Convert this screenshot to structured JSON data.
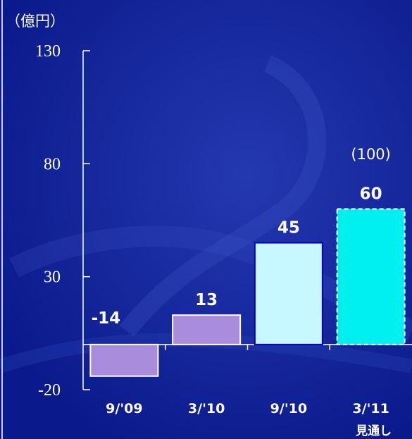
{
  "unit_label": "（億円）",
  "colors": {
    "background": "#0a1a8c",
    "bar_purple": "#a98cdc",
    "bar_lightcyan": "#c8f8ff",
    "bar_cyan": "#00f0f0",
    "axis": "#ffffff"
  },
  "chart_data": {
    "type": "bar",
    "ylim": [
      -20,
      130
    ],
    "yticks": [
      130,
      80,
      30,
      -20
    ],
    "categories": [
      "9/'09",
      "3/'10",
      "9/'10",
      "3/'11"
    ],
    "values": [
      -14,
      13,
      45,
      60
    ],
    "value_labels": [
      "-14",
      "13",
      "45",
      "60"
    ],
    "bar_colors": [
      "#a98cdc",
      "#a98cdc",
      "#c8f8ff",
      "#00f0f0"
    ],
    "bar_outline": [
      "#ffffff",
      "#ffffff",
      "#0000c8",
      "#ffffff"
    ],
    "bar_dashed": [
      false,
      false,
      false,
      true
    ],
    "annotations": [
      {
        "category": "3/'11",
        "text": "(100)"
      },
      {
        "category": "3/'11",
        "text": "見通し",
        "position": "below-category"
      }
    ],
    "xlabel": "",
    "ylabel": "（億円）"
  }
}
